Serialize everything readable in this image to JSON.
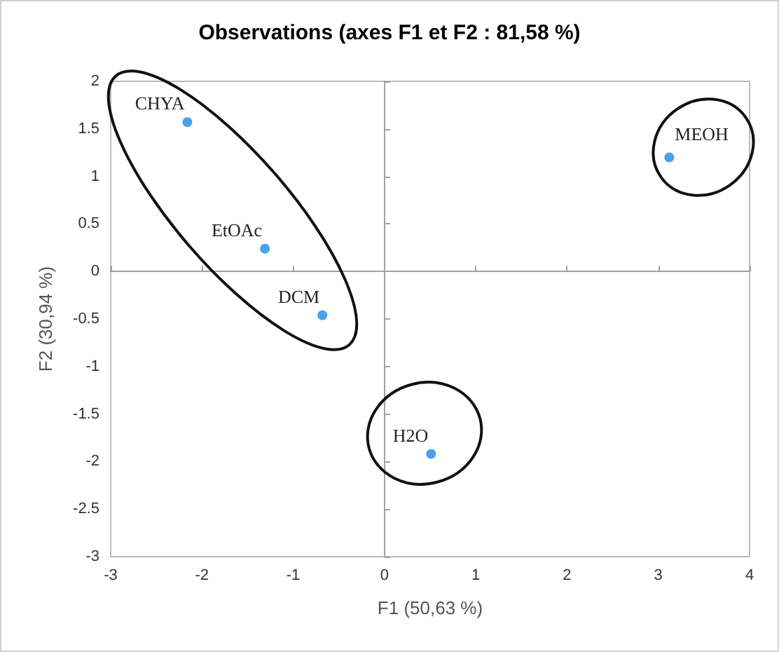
{
  "chart_data": {
    "type": "scatter",
    "title": "Observations (axes F1 et F2 : 81,58 %)",
    "xlabel": "F1 (50,63 %)",
    "ylabel": "F2 (30,94 %)",
    "series": [
      {
        "color": "#1e88e5",
        "x": [
          -2.16,
          -1.31,
          -0.68,
          0.51,
          3.12
        ],
        "values": [
          1.57,
          0.24,
          -0.46,
          -1.92,
          1.2
        ]
      }
    ],
    "annotations": [
      {
        "text": "CHYA",
        "x": -2.16,
        "y": 1.57
      },
      {
        "text": "EtOAc",
        "x": -1.31,
        "y": 0.24
      },
      {
        "text": "DCM",
        "x": -0.68,
        "y": -0.46
      },
      {
        "text": "H2O",
        "x": 0.51,
        "y": -1.92
      },
      {
        "text": "MEOH",
        "x": 3.12,
        "y": 1.2
      }
    ],
    "xlim": [
      -3,
      4
    ],
    "xticks": [
      -3,
      -2,
      -1,
      0,
      1,
      2,
      3,
      4
    ],
    "ylim": [
      -3,
      2
    ],
    "yticks": [
      -3,
      -2.5,
      -2,
      -1.5,
      -1,
      -0.5,
      0,
      0.5,
      1,
      1.5,
      2
    ],
    "marker": "circle"
  }
}
